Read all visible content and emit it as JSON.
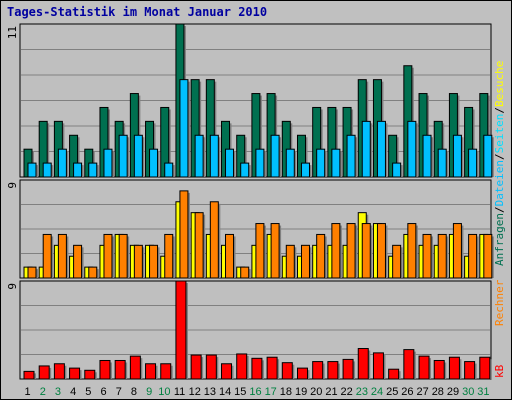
{
  "title": "Tages-Statistik im Monat Januar 2010",
  "legends": {
    "top": [
      {
        "text": "Anfragen",
        "color": "#007050"
      },
      {
        "text": "/",
        "color": "#000000"
      },
      {
        "text": "Dateien",
        "color": "#00c0ff"
      },
      {
        "text": "/",
        "color": "#000000"
      },
      {
        "text": "Seiten",
        "color": "#00e0ff"
      },
      {
        "text": "/",
        "color": "#000000"
      },
      {
        "text": "Besuche",
        "color": "#ffff00"
      }
    ],
    "middle": [
      {
        "text": "Rechner",
        "color": "#ff8000"
      }
    ],
    "bottom": [
      {
        "text": "kB",
        "color": "#ff0000"
      }
    ]
  },
  "colors": {
    "anfragen": "#007050",
    "dateien": "#00c0ff",
    "seiten": "#00e0ff",
    "besuche": "#ffff00",
    "rechner": "#ff8000",
    "kb": "#ff0000",
    "weekday_label": "#000000",
    "weekend_label": "#008040"
  },
  "chart_data": [
    {
      "type": "bar",
      "title": "Tages-Statistik im Monat Januar 2010",
      "x": [
        1,
        2,
        3,
        4,
        5,
        6,
        7,
        8,
        9,
        10,
        11,
        12,
        13,
        14,
        15,
        16,
        17,
        18,
        19,
        20,
        21,
        22,
        23,
        24,
        25,
        26,
        27,
        28,
        29,
        30,
        31
      ],
      "ylim": [
        0,
        11
      ],
      "ytick_label": "11",
      "series": [
        {
          "name": "Anfragen",
          "values": [
            2,
            4,
            4,
            3,
            2,
            5,
            4,
            6,
            4,
            5,
            11,
            7,
            7,
            4,
            3,
            6,
            6,
            4,
            3,
            5,
            5,
            5,
            7,
            7,
            3,
            8,
            6,
            4,
            6,
            5,
            6
          ]
        },
        {
          "name": "Dateien",
          "values": [
            1,
            1,
            2,
            1,
            1,
            2,
            3,
            3,
            2,
            1,
            7,
            3,
            3,
            2,
            1,
            2,
            3,
            2,
            1,
            2,
            2,
            3,
            4,
            4,
            1,
            4,
            3,
            2,
            3,
            2,
            3
          ]
        }
      ]
    },
    {
      "type": "bar",
      "x": [
        1,
        2,
        3,
        4,
        5,
        6,
        7,
        8,
        9,
        10,
        11,
        12,
        13,
        14,
        15,
        16,
        17,
        18,
        19,
        20,
        21,
        22,
        23,
        24,
        25,
        26,
        27,
        28,
        29,
        30,
        31
      ],
      "ylim": [
        0,
        9
      ],
      "ytick_label": "9",
      "series": [
        {
          "name": "Besuche",
          "values": [
            1,
            1,
            3,
            2,
            1,
            3,
            4,
            3,
            3,
            2,
            7,
            6,
            4,
            3,
            1,
            3,
            4,
            2,
            2,
            3,
            3,
            3,
            6,
            5,
            2,
            4,
            3,
            3,
            4,
            2,
            4
          ]
        },
        {
          "name": "Rechner",
          "values": [
            1,
            4,
            4,
            3,
            1,
            4,
            4,
            3,
            3,
            4,
            8,
            6,
            7,
            4,
            1,
            5,
            5,
            3,
            3,
            4,
            5,
            5,
            5,
            5,
            3,
            5,
            4,
            4,
            5,
            4,
            4
          ]
        }
      ]
    },
    {
      "type": "bar",
      "x": [
        1,
        2,
        3,
        4,
        5,
        6,
        7,
        8,
        9,
        10,
        11,
        12,
        13,
        14,
        15,
        16,
        17,
        18,
        19,
        20,
        21,
        22,
        23,
        24,
        25,
        26,
        27,
        28,
        29,
        30,
        31
      ],
      "ylim": [
        0,
        9
      ],
      "ytick_label": "9",
      "series": [
        {
          "name": "kB",
          "values": [
            0.7,
            1.2,
            1.4,
            1.0,
            0.8,
            1.7,
            1.7,
            2.1,
            1.4,
            1.4,
            9.0,
            2.2,
            2.2,
            1.4,
            2.3,
            1.9,
            2.0,
            1.5,
            1.0,
            1.6,
            1.6,
            1.8,
            2.8,
            2.4,
            0.9,
            2.7,
            2.1,
            1.7,
            2.0,
            1.6,
            2.0
          ]
        }
      ]
    }
  ],
  "day_labels": [
    "1",
    "2",
    "3",
    "4",
    "5",
    "6",
    "7",
    "8",
    "9",
    "10",
    "11",
    "12",
    "13",
    "14",
    "15",
    "16",
    "17",
    "18",
    "19",
    "20",
    "21",
    "22",
    "23",
    "24",
    "25",
    "26",
    "27",
    "28",
    "29",
    "30",
    "31"
  ],
  "weekend_days": [
    2,
    3,
    9,
    10,
    16,
    17,
    23,
    24,
    30,
    31
  ]
}
